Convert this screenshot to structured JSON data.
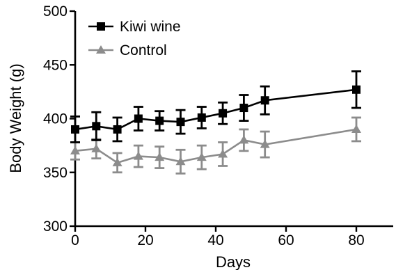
{
  "chart_data": {
    "type": "line",
    "xlabel": "Days",
    "ylabel": "Body Weight (g)",
    "xlim": [
      0,
      90
    ],
    "ylim": [
      300,
      500
    ],
    "xticks": [
      0,
      20,
      40,
      60,
      80
    ],
    "yticks": [
      300,
      350,
      400,
      450,
      500
    ],
    "grid": false,
    "legend_position": "top-left",
    "series": [
      {
        "name": "Kiwi wine",
        "color": "#000000",
        "marker": "square",
        "points": [
          {
            "x": 0,
            "y": 390,
            "err": 12
          },
          {
            "x": 6,
            "y": 393,
            "err": 13
          },
          {
            "x": 12,
            "y": 390,
            "err": 11
          },
          {
            "x": 18,
            "y": 400,
            "err": 11
          },
          {
            "x": 24,
            "y": 398,
            "err": 9
          },
          {
            "x": 30,
            "y": 397,
            "err": 11
          },
          {
            "x": 36,
            "y": 401,
            "err": 10
          },
          {
            "x": 42,
            "y": 405,
            "err": 10
          },
          {
            "x": 48,
            "y": 410,
            "err": 12
          },
          {
            "x": 54,
            "y": 417,
            "err": 13
          },
          {
            "x": 80,
            "y": 427,
            "err": 17
          }
        ]
      },
      {
        "name": "Control",
        "color": "#8c8c8c",
        "marker": "triangle",
        "points": [
          {
            "x": 0,
            "y": 370,
            "err": 8
          },
          {
            "x": 6,
            "y": 372,
            "err": 9
          },
          {
            "x": 12,
            "y": 359,
            "err": 9
          },
          {
            "x": 18,
            "y": 365,
            "err": 10
          },
          {
            "x": 24,
            "y": 364,
            "err": 10
          },
          {
            "x": 30,
            "y": 360,
            "err": 11
          },
          {
            "x": 36,
            "y": 364,
            "err": 11
          },
          {
            "x": 42,
            "y": 367,
            "err": 11
          },
          {
            "x": 48,
            "y": 380,
            "err": 10
          },
          {
            "x": 54,
            "y": 376,
            "err": 12
          },
          {
            "x": 80,
            "y": 390,
            "err": 11
          }
        ]
      }
    ]
  }
}
